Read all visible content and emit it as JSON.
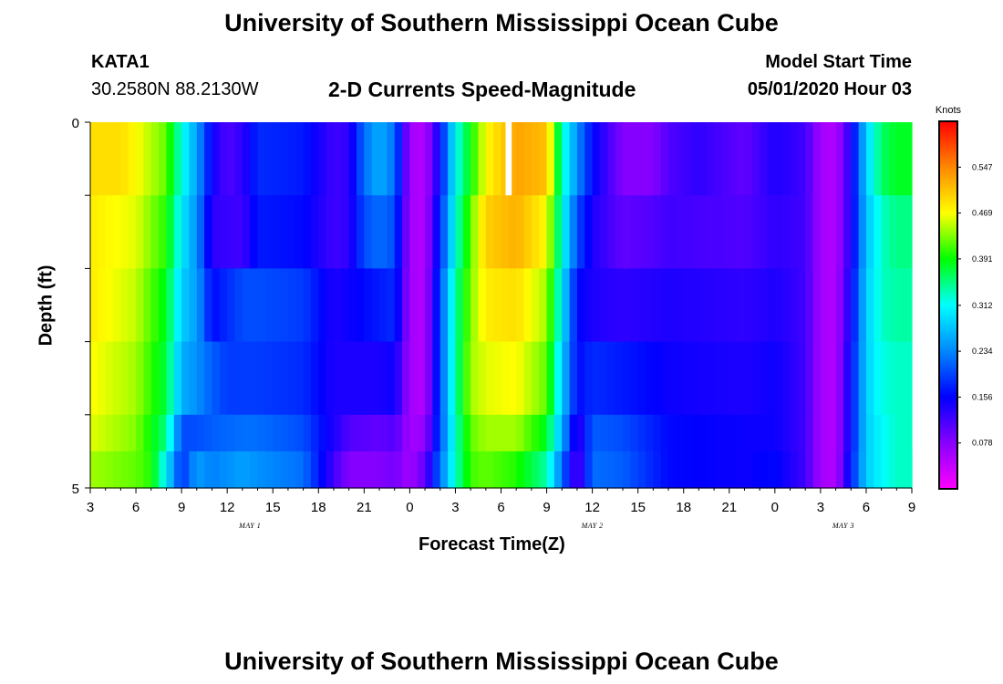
{
  "header": {
    "title": "University of Southern Mississippi Ocean Cube",
    "station": "KATA1",
    "coords": "30.2580N 88.2130W",
    "subtitle": "2-D Currents Speed-Magnitude",
    "model_start_label": "Model Start Time",
    "model_start_value": "05/01/2020 Hour 03"
  },
  "footer": {
    "title": "University of Southern Mississippi Ocean Cube"
  },
  "colors": {
    "colormap": [
      "#ff00ff",
      "#8800ff",
      "#0000ff",
      "#0088ff",
      "#00ffff",
      "#00ff00",
      "#ffff00",
      "#ff8800",
      "#ff0000"
    ]
  },
  "chart_data": {
    "type": "heatmap",
    "title": "2-D Currents Speed-Magnitude",
    "xlabel": "Forecast Time(Z)",
    "ylabel": "Depth (ft)",
    "units": "Knots",
    "x_start_hour": 3,
    "x_hours": 54,
    "xlim": [
      0,
      54
    ],
    "ylim": [
      0,
      5
    ],
    "y_ticks": [
      "0",
      "5"
    ],
    "x_tick_labels": [
      "3",
      "6",
      "9",
      "12",
      "15",
      "18",
      "21",
      "0",
      "3",
      "6",
      "9",
      "12",
      "15",
      "18",
      "21",
      "0",
      "3",
      "6",
      "9"
    ],
    "day_labels": [
      {
        "label": "MAY 1",
        "hour": 10.5
      },
      {
        "label": "MAY 2",
        "hour": 33
      },
      {
        "label": "MAY 3",
        "hour": 49.5
      }
    ],
    "colorbar": {
      "min": 0.0,
      "max": 0.625,
      "tick_labels": [
        "0.078",
        "0.156",
        "0.234",
        "0.312",
        "0.391",
        "0.469",
        "0.547"
      ],
      "tick_values": [
        0.078,
        0.156,
        0.234,
        0.312,
        0.391,
        0.469,
        0.547
      ]
    },
    "missing_cells": [
      {
        "layer": 0,
        "hour_start": 27.3,
        "hour_end": 27.7
      }
    ],
    "layers": [
      {
        "depth_range": [
          0,
          1
        ],
        "keyframes": [
          [
            0,
            0.49
          ],
          [
            2,
            0.49
          ],
          [
            3,
            0.47
          ],
          [
            5,
            0.42
          ],
          [
            6,
            0.32
          ],
          [
            7,
            0.25
          ],
          [
            8,
            0.15
          ],
          [
            9,
            0.11
          ],
          [
            10,
            0.13
          ],
          [
            11,
            0.18
          ],
          [
            14,
            0.17
          ],
          [
            16,
            0.12
          ],
          [
            17,
            0.13
          ],
          [
            18,
            0.22
          ],
          [
            19,
            0.26
          ],
          [
            20,
            0.22
          ],
          [
            21,
            0.06
          ],
          [
            22,
            0.05
          ],
          [
            23,
            0.16
          ],
          [
            24,
            0.31
          ],
          [
            25,
            0.39
          ],
          [
            26,
            0.47
          ],
          [
            28,
            0.53
          ],
          [
            30,
            0.51
          ],
          [
            31,
            0.33
          ],
          [
            32,
            0.24
          ],
          [
            33,
            0.16
          ],
          [
            34,
            0.12
          ],
          [
            35,
            0.08
          ],
          [
            37,
            0.08
          ],
          [
            38,
            0.11
          ],
          [
            40,
            0.13
          ],
          [
            43,
            0.1
          ],
          [
            45,
            0.14
          ],
          [
            47,
            0.12
          ],
          [
            48,
            0.06
          ],
          [
            49,
            0.05
          ],
          [
            50,
            0.14
          ],
          [
            51,
            0.28
          ],
          [
            52,
            0.36
          ],
          [
            53,
            0.38
          ],
          [
            54,
            0.38
          ]
        ]
      },
      {
        "depth_range": [
          1,
          2
        ],
        "keyframes": [
          [
            0,
            0.48
          ],
          [
            3,
            0.46
          ],
          [
            5,
            0.4
          ],
          [
            6,
            0.3
          ],
          [
            7,
            0.24
          ],
          [
            8,
            0.13
          ],
          [
            10,
            0.12
          ],
          [
            11,
            0.17
          ],
          [
            14,
            0.16
          ],
          [
            16,
            0.12
          ],
          [
            17,
            0.13
          ],
          [
            18,
            0.2
          ],
          [
            19,
            0.22
          ],
          [
            20,
            0.2
          ],
          [
            21,
            0.06
          ],
          [
            22,
            0.05
          ],
          [
            23,
            0.18
          ],
          [
            24,
            0.32
          ],
          [
            25,
            0.42
          ],
          [
            26,
            0.5
          ],
          [
            28,
            0.52
          ],
          [
            30,
            0.47
          ],
          [
            31,
            0.32
          ],
          [
            32,
            0.2
          ],
          [
            33,
            0.14
          ],
          [
            34,
            0.12
          ],
          [
            35,
            0.1
          ],
          [
            37,
            0.11
          ],
          [
            38,
            0.12
          ],
          [
            43,
            0.11
          ],
          [
            45,
            0.13
          ],
          [
            47,
            0.12
          ],
          [
            48,
            0.06
          ],
          [
            49,
            0.05
          ],
          [
            50,
            0.14
          ],
          [
            51,
            0.27
          ],
          [
            52,
            0.33
          ],
          [
            53,
            0.35
          ],
          [
            54,
            0.35
          ]
        ]
      },
      {
        "depth_range": [
          2,
          3
        ],
        "keyframes": [
          [
            0,
            0.48
          ],
          [
            3,
            0.45
          ],
          [
            5,
            0.38
          ],
          [
            6,
            0.28
          ],
          [
            7,
            0.25
          ],
          [
            8,
            0.16
          ],
          [
            9,
            0.18
          ],
          [
            10,
            0.2
          ],
          [
            11,
            0.2
          ],
          [
            14,
            0.19
          ],
          [
            16,
            0.14
          ],
          [
            17,
            0.15
          ],
          [
            19,
            0.17
          ],
          [
            20,
            0.18
          ],
          [
            21,
            0.06
          ],
          [
            22,
            0.05
          ],
          [
            23,
            0.2
          ],
          [
            24,
            0.34
          ],
          [
            25,
            0.43
          ],
          [
            26,
            0.48
          ],
          [
            28,
            0.49
          ],
          [
            30,
            0.44
          ],
          [
            31,
            0.3
          ],
          [
            32,
            0.16
          ],
          [
            33,
            0.14
          ],
          [
            35,
            0.13
          ],
          [
            38,
            0.14
          ],
          [
            43,
            0.13
          ],
          [
            45,
            0.14
          ],
          [
            47,
            0.12
          ],
          [
            48,
            0.06
          ],
          [
            49,
            0.05
          ],
          [
            50,
            0.15
          ],
          [
            51,
            0.28
          ],
          [
            52,
            0.33
          ],
          [
            53,
            0.34
          ],
          [
            54,
            0.34
          ]
        ]
      },
      {
        "depth_range": [
          3,
          4
        ],
        "keyframes": [
          [
            0,
            0.47
          ],
          [
            3,
            0.44
          ],
          [
            5,
            0.37
          ],
          [
            6,
            0.26
          ],
          [
            7,
            0.24
          ],
          [
            8,
            0.21
          ],
          [
            9,
            0.19
          ],
          [
            10,
            0.19
          ],
          [
            11,
            0.19
          ],
          [
            14,
            0.18
          ],
          [
            16,
            0.14
          ],
          [
            17,
            0.14
          ],
          [
            19,
            0.14
          ],
          [
            20,
            0.15
          ],
          [
            21,
            0.06
          ],
          [
            22,
            0.05
          ],
          [
            23,
            0.2
          ],
          [
            24,
            0.34
          ],
          [
            25,
            0.44
          ],
          [
            26,
            0.46
          ],
          [
            28,
            0.47
          ],
          [
            30,
            0.42
          ],
          [
            31,
            0.28
          ],
          [
            32,
            0.16
          ],
          [
            33,
            0.18
          ],
          [
            35,
            0.17
          ],
          [
            38,
            0.15
          ],
          [
            43,
            0.14
          ],
          [
            45,
            0.15
          ],
          [
            47,
            0.12
          ],
          [
            48,
            0.06
          ],
          [
            49,
            0.05
          ],
          [
            50,
            0.16
          ],
          [
            51,
            0.28
          ],
          [
            52,
            0.32
          ],
          [
            53,
            0.33
          ],
          [
            54,
            0.33
          ]
        ]
      },
      {
        "depth_range": [
          4,
          5
        ],
        "keyframes": [
          [
            0,
            0.46
          ],
          [
            3,
            0.43
          ],
          [
            5,
            0.35
          ],
          [
            6,
            0.2
          ],
          [
            7,
            0.2
          ],
          [
            8,
            0.21
          ],
          [
            10,
            0.22
          ],
          [
            11,
            0.22
          ],
          [
            14,
            0.2
          ],
          [
            16,
            0.14
          ],
          [
            17,
            0.11
          ],
          [
            19,
            0.1
          ],
          [
            20,
            0.11
          ],
          [
            21,
            0.06
          ],
          [
            22,
            0.07
          ],
          [
            23,
            0.2
          ],
          [
            24,
            0.33
          ],
          [
            25,
            0.42
          ],
          [
            26,
            0.44
          ],
          [
            28,
            0.44
          ],
          [
            30,
            0.38
          ],
          [
            31,
            0.26
          ],
          [
            32,
            0.12
          ],
          [
            33,
            0.21
          ],
          [
            35,
            0.2
          ],
          [
            38,
            0.16
          ],
          [
            43,
            0.15
          ],
          [
            45,
            0.15
          ],
          [
            47,
            0.12
          ],
          [
            48,
            0.06
          ],
          [
            49,
            0.05
          ],
          [
            50,
            0.16
          ],
          [
            51,
            0.28
          ],
          [
            52,
            0.31
          ],
          [
            53,
            0.33
          ],
          [
            54,
            0.33
          ]
        ]
      },
      {
        "depth_range": [
          4.5,
          5
        ],
        "keyframes": [
          [
            0,
            0.44
          ],
          [
            3,
            0.42
          ],
          [
            4,
            0.4
          ],
          [
            5,
            0.3
          ],
          [
            6,
            0.18
          ],
          [
            7,
            0.25
          ],
          [
            8,
            0.23
          ],
          [
            10,
            0.25
          ],
          [
            11,
            0.24
          ],
          [
            14,
            0.22
          ],
          [
            16,
            0.12
          ],
          [
            17,
            0.08
          ],
          [
            19,
            0.08
          ],
          [
            20,
            0.09
          ],
          [
            21,
            0.06
          ],
          [
            22,
            0.1
          ],
          [
            23,
            0.22
          ],
          [
            24,
            0.33
          ],
          [
            25,
            0.41
          ],
          [
            26,
            0.42
          ],
          [
            28,
            0.4
          ],
          [
            30,
            0.34
          ],
          [
            31,
            0.22
          ],
          [
            32,
            0.1
          ],
          [
            33,
            0.22
          ],
          [
            35,
            0.21
          ],
          [
            38,
            0.16
          ],
          [
            43,
            0.15
          ],
          [
            45,
            0.16
          ],
          [
            47,
            0.12
          ],
          [
            48,
            0.06
          ],
          [
            49,
            0.05
          ],
          [
            50,
            0.17
          ],
          [
            51,
            0.28
          ],
          [
            52,
            0.31
          ],
          [
            53,
            0.33
          ],
          [
            54,
            0.33
          ]
        ]
      }
    ]
  }
}
